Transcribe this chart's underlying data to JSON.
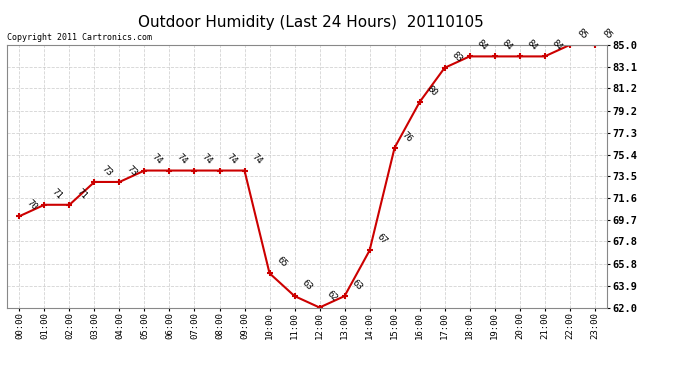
{
  "title": "Outdoor Humidity (Last 24 Hours)  20110105",
  "copyright": "Copyright 2011 Cartronics.com",
  "x_labels": [
    "00:00",
    "01:00",
    "02:00",
    "03:00",
    "04:00",
    "05:00",
    "06:00",
    "07:00",
    "08:00",
    "09:00",
    "10:00",
    "11:00",
    "12:00",
    "13:00",
    "14:00",
    "15:00",
    "16:00",
    "17:00",
    "18:00",
    "19:00",
    "20:00",
    "21:00",
    "22:00",
    "23:00"
  ],
  "y_values": [
    70,
    71,
    71,
    73,
    73,
    74,
    74,
    74,
    74,
    74,
    65,
    63,
    62,
    63,
    67,
    76,
    80,
    83,
    84,
    84,
    84,
    84,
    85,
    85
  ],
  "data_labels": [
    "70",
    "71",
    "71",
    "73",
    "73",
    "74",
    "74",
    "74",
    "74",
    "74",
    "65",
    "63",
    "62",
    "63",
    "67",
    "76",
    "80",
    "83",
    "84",
    "84",
    "84",
    "84",
    "85",
    "85"
  ],
  "line_color": "#cc0000",
  "marker_color": "#cc0000",
  "background_color": "#ffffff",
  "grid_color": "#c8c8c8",
  "title_fontsize": 11,
  "label_fontsize": 7,
  "ytick_labels": [
    "62.0",
    "63.9",
    "65.8",
    "67.8",
    "69.7",
    "71.6",
    "73.5",
    "75.4",
    "77.3",
    "79.2",
    "81.2",
    "83.1",
    "85.0"
  ],
  "ymin": 62.0,
  "ymax": 85.0,
  "ytick_values": [
    62.0,
    63.9,
    65.8,
    67.8,
    69.7,
    71.6,
    73.5,
    75.4,
    77.3,
    79.2,
    81.2,
    83.1,
    85.0
  ]
}
